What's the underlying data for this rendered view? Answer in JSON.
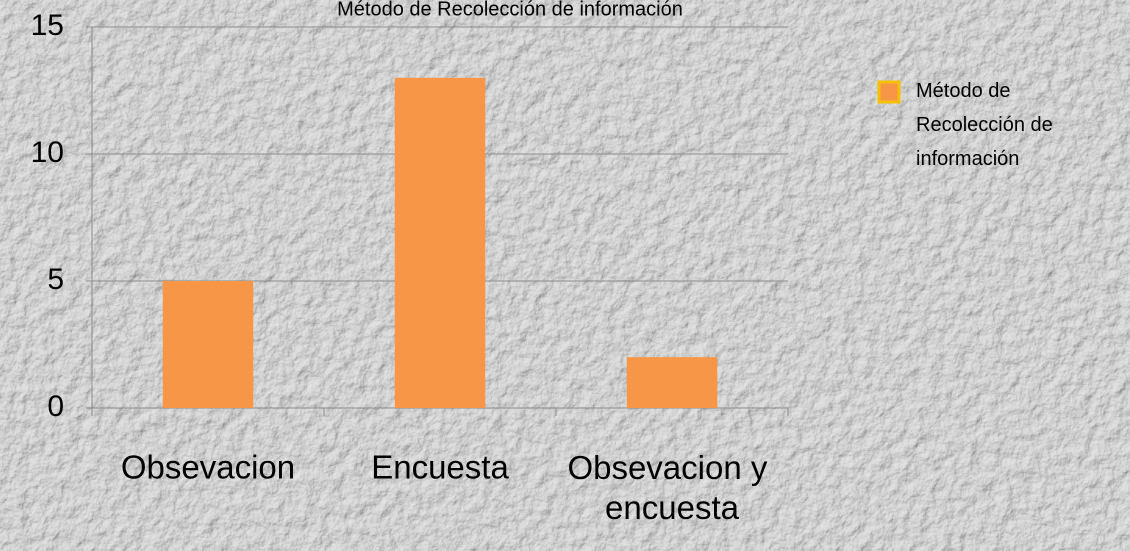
{
  "chart_data": {
    "type": "bar",
    "title": "Método de  Recolección  de información",
    "categories": [
      "Obsevacion",
      "Encuesta",
      "Obsevacion y encuesta"
    ],
    "series": [
      {
        "name": "Método de Recolección de información",
        "color": "#f79646",
        "values": [
          5,
          13,
          2
        ]
      }
    ],
    "ylim": [
      0,
      15
    ],
    "yticks": [
      0,
      5,
      10,
      15
    ],
    "grid": true,
    "legend": "right"
  }
}
